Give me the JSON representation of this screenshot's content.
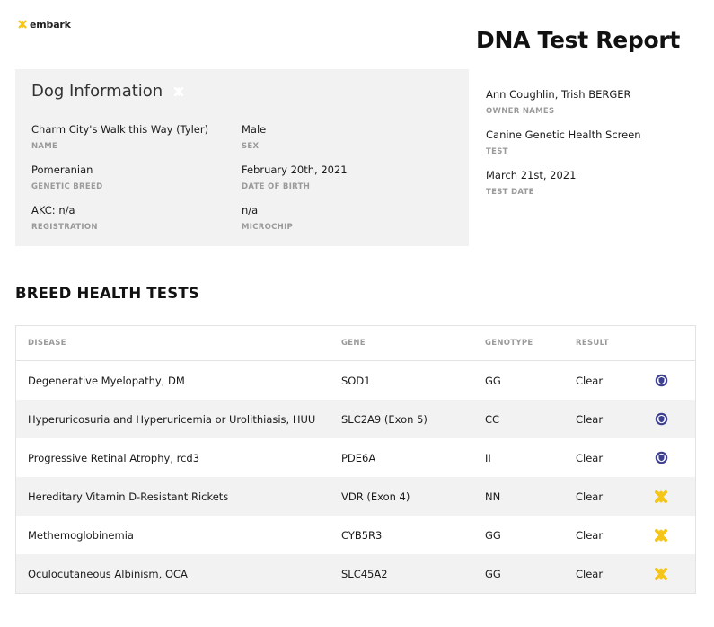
{
  "brand": {
    "name": "embark",
    "accent": "#f5c518",
    "shield_color": "#3d3f8f"
  },
  "report": {
    "title": "DNA Test Report"
  },
  "dog_info": {
    "title": "Dog Information",
    "name": {
      "value": "Charm City's Walk this Way (Tyler)",
      "label": "NAME"
    },
    "sex": {
      "value": "Male",
      "label": "SEX"
    },
    "breed": {
      "value": "Pomeranian",
      "label": "GENETIC BREED"
    },
    "dob": {
      "value": "February 20th, 2021",
      "label": "DATE OF BIRTH"
    },
    "registration": {
      "value": "AKC: n/a",
      "label": "REGISTRATION"
    },
    "microchip": {
      "value": "n/a",
      "label": "MICROCHIP"
    }
  },
  "owner": {
    "names": {
      "value": "Ann Coughlin, Trish BERGER",
      "label": "OWNER NAMES"
    },
    "test": {
      "value": "Canine Genetic Health Screen",
      "label": "TEST"
    },
    "test_date": {
      "value": "March 21st, 2021",
      "label": "TEST DATE"
    }
  },
  "breed_health": {
    "title": "BREED HEALTH TESTS",
    "headers": {
      "disease": "DISEASE",
      "gene": "GENE",
      "genotype": "GENOTYPE",
      "result": "RESULT"
    },
    "rows": [
      {
        "disease": "Degenerative Myelopathy, DM",
        "gene": "SOD1",
        "genotype": "GG",
        "result": "Clear",
        "icon": "shield-icon"
      },
      {
        "disease": "Hyperuricosuria and Hyperuricemia or Urolithiasis, HUU",
        "gene": "SLC2A9 (Exon 5)",
        "genotype": "CC",
        "result": "Clear",
        "icon": "shield-icon"
      },
      {
        "disease": "Progressive Retinal Atrophy, rcd3",
        "gene": "PDE6A",
        "genotype": "II",
        "result": "Clear",
        "icon": "shield-icon"
      },
      {
        "disease": "Hereditary Vitamin D-Resistant Rickets",
        "gene": "VDR (Exon 4)",
        "genotype": "NN",
        "result": "Clear",
        "icon": "embark-star-icon"
      },
      {
        "disease": "Methemoglobinemia",
        "gene": "CYB5R3",
        "genotype": "GG",
        "result": "Clear",
        "icon": "embark-star-icon"
      },
      {
        "disease": "Oculocutaneous Albinism, OCA",
        "gene": "SLC45A2",
        "genotype": "GG",
        "result": "Clear",
        "icon": "embark-star-icon"
      }
    ]
  }
}
